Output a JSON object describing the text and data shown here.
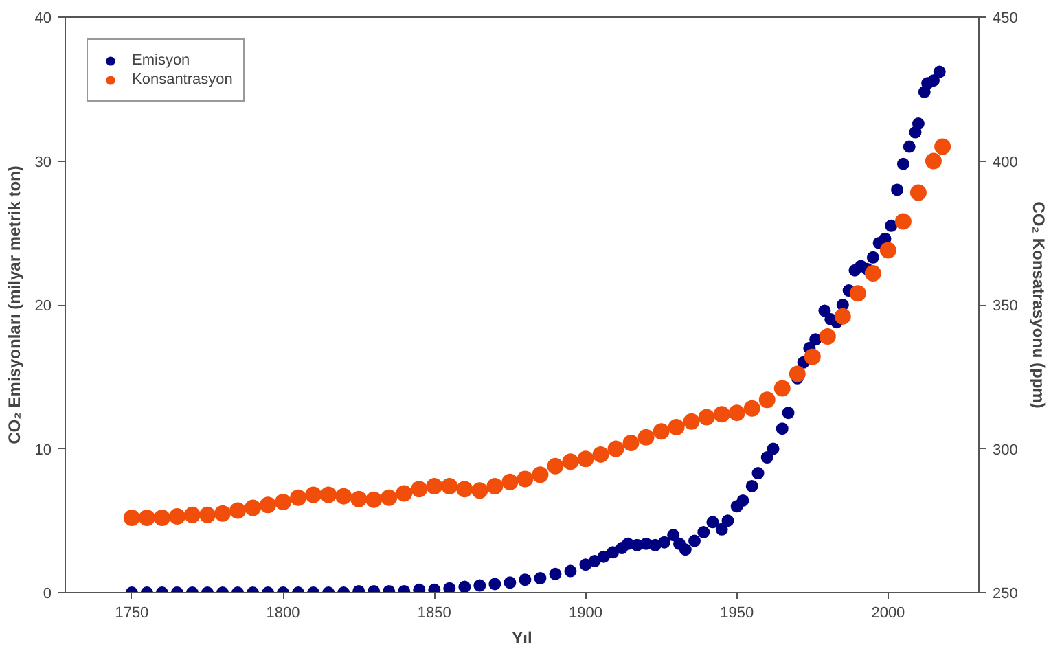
{
  "chart_data": {
    "type": "scatter",
    "xlabel": "Yıl",
    "ylabel": "CO₂ Emisyonları (milyar metrik ton)",
    "y2label": "CO₂ Konsatrasyonu (ppm)",
    "xlim": [
      1728,
      2030
    ],
    "xticks": [
      1750,
      1800,
      1850,
      1900,
      1950,
      2000
    ],
    "ylim": [
      0,
      40
    ],
    "yticks": [
      0,
      10,
      20,
      30,
      40
    ],
    "y2lim": [
      250,
      450
    ],
    "y2ticks": [
      250,
      300,
      350,
      400,
      450
    ],
    "grid": false,
    "legend": "top left",
    "marker": "circle",
    "series": [
      {
        "name": "Emisyon",
        "color": "#000080",
        "x": [
          1750,
          1755,
          1760,
          1765,
          1770,
          1775,
          1780,
          1785,
          1790,
          1795,
          1800,
          1805,
          1810,
          1815,
          1820,
          1825,
          1830,
          1835,
          1840,
          1845,
          1850,
          1855,
          1860,
          1865,
          1870,
          1875,
          1880,
          1885,
          1890,
          1895,
          1900,
          1903,
          1906,
          1909,
          1912,
          1914,
          1917,
          1920,
          1923,
          1926,
          1929,
          1931,
          1933,
          1936,
          1939,
          1942,
          1945,
          1947,
          1950,
          1952,
          1955,
          1957,
          1960,
          1962,
          1965,
          1967,
          1970,
          1972,
          1974,
          1976,
          1979,
          1981,
          1983,
          1985,
          1987,
          1989,
          1991,
          1993,
          1995,
          1997,
          1999,
          2001,
          2003,
          2005,
          2007,
          2009,
          2010,
          2012,
          2013,
          2015,
          2017
        ],
        "values": [
          0,
          0,
          0,
          0,
          0,
          0,
          0,
          0,
          0,
          0,
          0,
          0,
          0,
          0,
          0,
          0.1,
          0.1,
          0.1,
          0.1,
          0.2,
          0.2,
          0.3,
          0.4,
          0.5,
          0.6,
          0.7,
          0.9,
          1.0,
          1.3,
          1.5,
          1.95,
          2.2,
          2.5,
          2.8,
          3.1,
          3.4,
          3.3,
          3.4,
          3.3,
          3.5,
          4.0,
          3.4,
          3.0,
          3.6,
          4.2,
          4.9,
          4.4,
          5.0,
          6.0,
          6.4,
          7.4,
          8.3,
          9.4,
          10.0,
          11.4,
          12.5,
          14.9,
          16.0,
          17.0,
          17.6,
          19.6,
          19.0,
          18.8,
          20.0,
          21.0,
          22.4,
          22.7,
          22.5,
          23.3,
          24.3,
          24.6,
          25.5,
          28.0,
          29.8,
          31.0,
          32.0,
          32.6,
          34.8,
          35.4,
          35.6,
          36.2
        ]
      },
      {
        "name": "Konsantrasyon",
        "color": "#f04e0a",
        "axis": "y2",
        "x": [
          1750,
          1755,
          1760,
          1765,
          1770,
          1775,
          1780,
          1785,
          1790,
          1795,
          1800,
          1805,
          1810,
          1815,
          1820,
          1825,
          1830,
          1835,
          1840,
          1845,
          1850,
          1855,
          1860,
          1865,
          1870,
          1875,
          1880,
          1885,
          1890,
          1895,
          1900,
          1905,
          1910,
          1915,
          1920,
          1925,
          1930,
          1935,
          1940,
          1945,
          1950,
          1955,
          1960,
          1965,
          1970,
          1975,
          1980,
          1985,
          1990,
          1995,
          2000,
          2005,
          2010,
          2015,
          2018
        ],
        "values": [
          276,
          276,
          276,
          276.5,
          277,
          277,
          277.5,
          278.5,
          279.5,
          280.5,
          281.5,
          283,
          284,
          284,
          283.5,
          282.5,
          282.3,
          283,
          284.5,
          286,
          287,
          287,
          286,
          285.5,
          287,
          288.5,
          289.5,
          291,
          294,
          295.5,
          296.5,
          298,
          300,
          302,
          304,
          306,
          307.5,
          309.5,
          311,
          312,
          312.5,
          314,
          317,
          321,
          326,
          332,
          339,
          346,
          354,
          361,
          369,
          379,
          389,
          400,
          405
        ]
      }
    ]
  }
}
